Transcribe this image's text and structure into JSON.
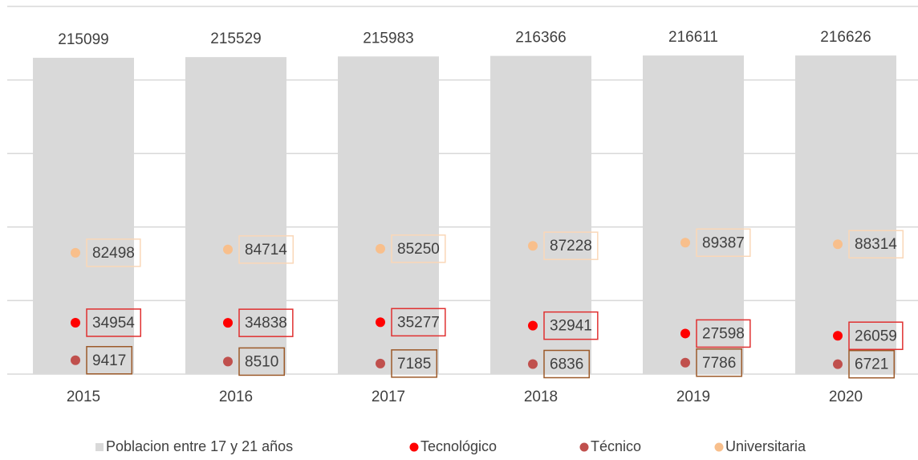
{
  "chart_data": {
    "type": "bar",
    "categories": [
      "2015",
      "2016",
      "2017",
      "2018",
      "2019",
      "2020"
    ],
    "series": [
      {
        "name": "Poblacion entre 17 y 21 años",
        "type": "bar",
        "color": "#d9d9d9",
        "values": [
          215099,
          215529,
          215983,
          216366,
          216611,
          216626
        ]
      },
      {
        "name": "Tecnológico",
        "type": "scatter",
        "color": "#ff0000",
        "label_border": "#e03030",
        "values": [
          34954,
          34838,
          35277,
          32941,
          27598,
          26059
        ]
      },
      {
        "name": "Técnico",
        "type": "scatter",
        "color": "#c0504d",
        "label_border": "#9c5a2a",
        "values": [
          9417,
          8510,
          7185,
          6836,
          7786,
          6721
        ]
      },
      {
        "name": "Universitaria",
        "type": "scatter",
        "color": "#f8bf8c",
        "label_border": "#fad7b8",
        "values": [
          82498,
          84714,
          85250,
          87228,
          89387,
          88314
        ]
      }
    ],
    "ylim": [
      0,
      250000
    ],
    "yticks": [
      0,
      50000,
      100000,
      150000,
      200000,
      250000
    ],
    "grid": true,
    "legend": "bottom"
  }
}
